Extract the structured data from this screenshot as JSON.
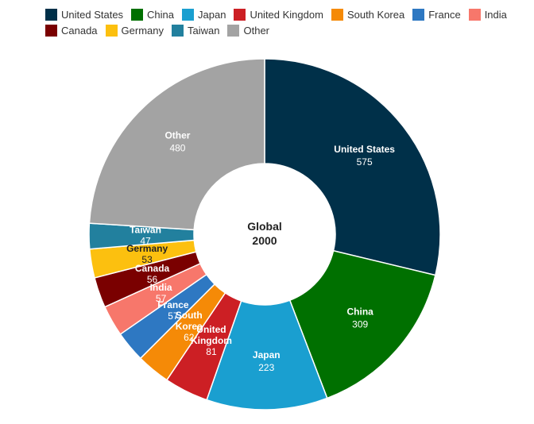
{
  "chart_data": {
    "type": "pie",
    "donut": true,
    "legend_position": "top-left",
    "center_label": "Global",
    "center_value": "2000",
    "slices": [
      {
        "name": "United States",
        "value": 575,
        "color": "#003049",
        "label_lines": [
          "United States"
        ]
      },
      {
        "name": "China",
        "value": 309,
        "color": "#007000",
        "label_lines": [
          "China"
        ]
      },
      {
        "name": "Japan",
        "value": 223,
        "color": "#1a9fd0",
        "label_lines": [
          "Japan"
        ]
      },
      {
        "name": "United Kingdom",
        "value": 81,
        "color": "#cc1f24",
        "label_lines": [
          "United",
          "Kingdom"
        ]
      },
      {
        "name": "South Korea",
        "value": 62,
        "color": "#f58a07",
        "label_lines": [
          "South",
          "Korea"
        ]
      },
      {
        "name": "France",
        "value": 57,
        "color": "#2e78c2",
        "label_lines": [
          "France"
        ]
      },
      {
        "name": "India",
        "value": 57,
        "color": "#f7776b",
        "label_lines": [
          "India"
        ]
      },
      {
        "name": "Canada",
        "value": 56,
        "color": "#7a0000",
        "label_lines": [
          "Canada"
        ]
      },
      {
        "name": "Germany",
        "value": 53,
        "color": "#fcc00f",
        "label_lines": [
          "Germany"
        ],
        "dark_text": true
      },
      {
        "name": "Taiwan",
        "value": 47,
        "color": "#22809e",
        "label_lines": [
          "Taiwan"
        ]
      },
      {
        "name": "Other",
        "value": 480,
        "color": "#a3a3a3",
        "label_lines": [
          "Other"
        ]
      }
    ]
  }
}
